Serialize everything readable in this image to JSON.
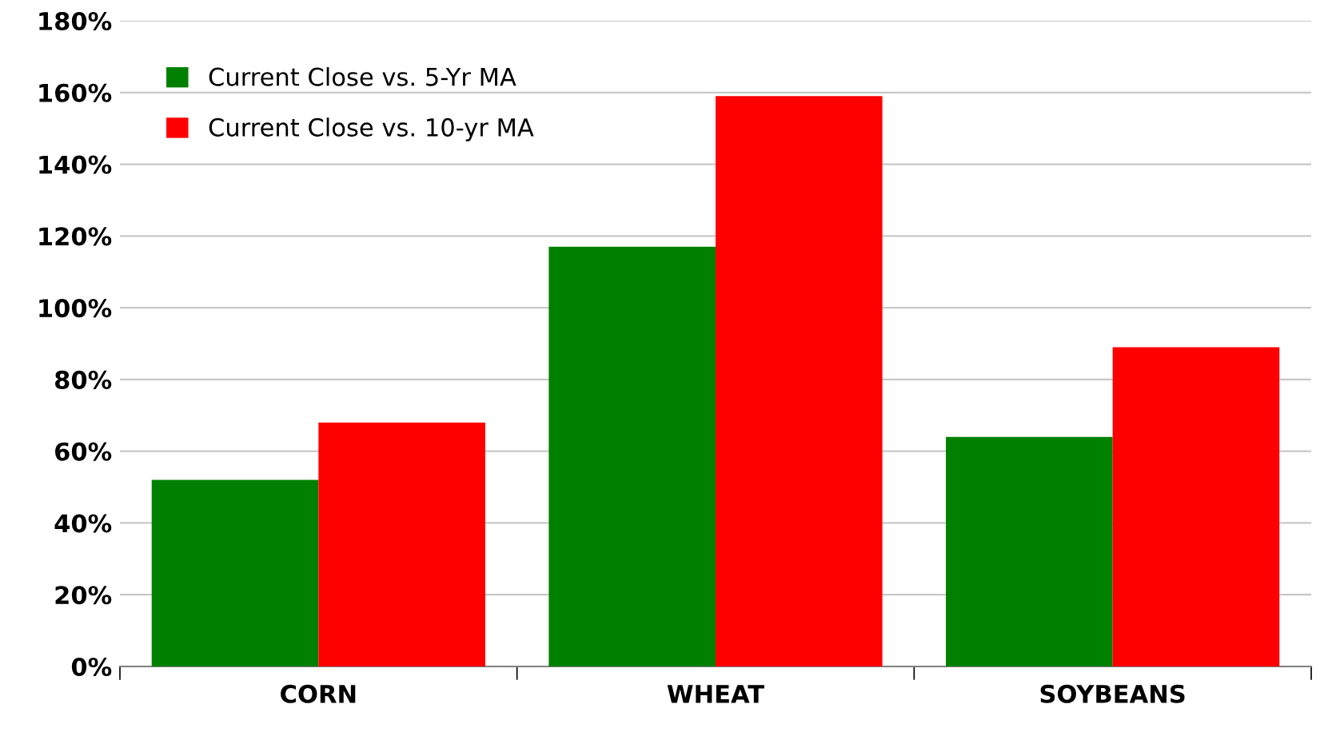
{
  "chart_data": {
    "type": "bar",
    "categories": [
      "CORN",
      "WHEAT",
      "SOYBEANS"
    ],
    "series": [
      {
        "name": "Current Close vs. 5-Yr MA",
        "color": "#008000",
        "values": [
          52,
          117,
          64
        ]
      },
      {
        "name": "Current Close vs. 10-yr MA",
        "color": "#ff0000",
        "values": [
          68,
          159,
          89
        ]
      }
    ],
    "ylim": [
      0,
      180
    ],
    "yticks": [
      {
        "value": 0,
        "label": "0%"
      },
      {
        "value": 20,
        "label": "20%"
      },
      {
        "value": 40,
        "label": "40%"
      },
      {
        "value": 60,
        "label": "60%"
      },
      {
        "value": 80,
        "label": "80%"
      },
      {
        "value": 100,
        "label": "100%"
      },
      {
        "value": 120,
        "label": "120%"
      },
      {
        "value": 140,
        "label": "140%"
      },
      {
        "value": 160,
        "label": "160%"
      },
      {
        "value": 180,
        "label": "180%"
      }
    ],
    "grid": "y",
    "legend": "top left"
  }
}
